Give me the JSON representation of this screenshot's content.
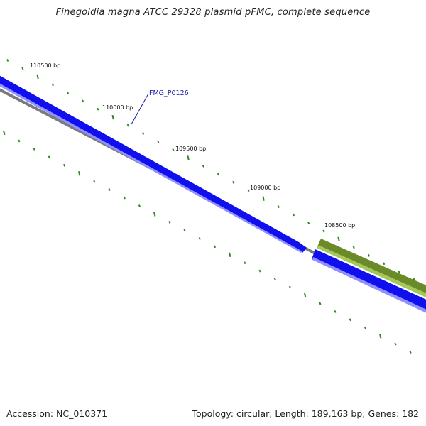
{
  "title": "Finegoldia magna ATCC 29328 plasmid pFMC, complete sequence",
  "footer": {
    "accession": "Accession: NC_010371",
    "summary": "Topology: circular; Length: 189,163 bp; Genes: 182"
  },
  "map": {
    "colors": {
      "forward_gene": "#1010ee",
      "forward_gene_highlight": "#9090ff",
      "reverse_gene": "#6b8a2a",
      "reverse_gene_highlight": "#a5c85a",
      "backbone": "#7a7a7a",
      "tick": "#2d8a1e",
      "label_line": "#1a1aaa"
    },
    "position_labels": [
      "110500 bp",
      "110000 bp",
      "109500 bp",
      "109000 bp",
      "108500 bp"
    ],
    "features": [
      {
        "name": "FMG_P0126",
        "strand": "+",
        "color": "blue"
      },
      {
        "name": "",
        "strand": "+",
        "color": "blue"
      },
      {
        "name": "",
        "strand": "-",
        "color": "olive"
      }
    ],
    "gene_label": "FMG_P0126"
  }
}
